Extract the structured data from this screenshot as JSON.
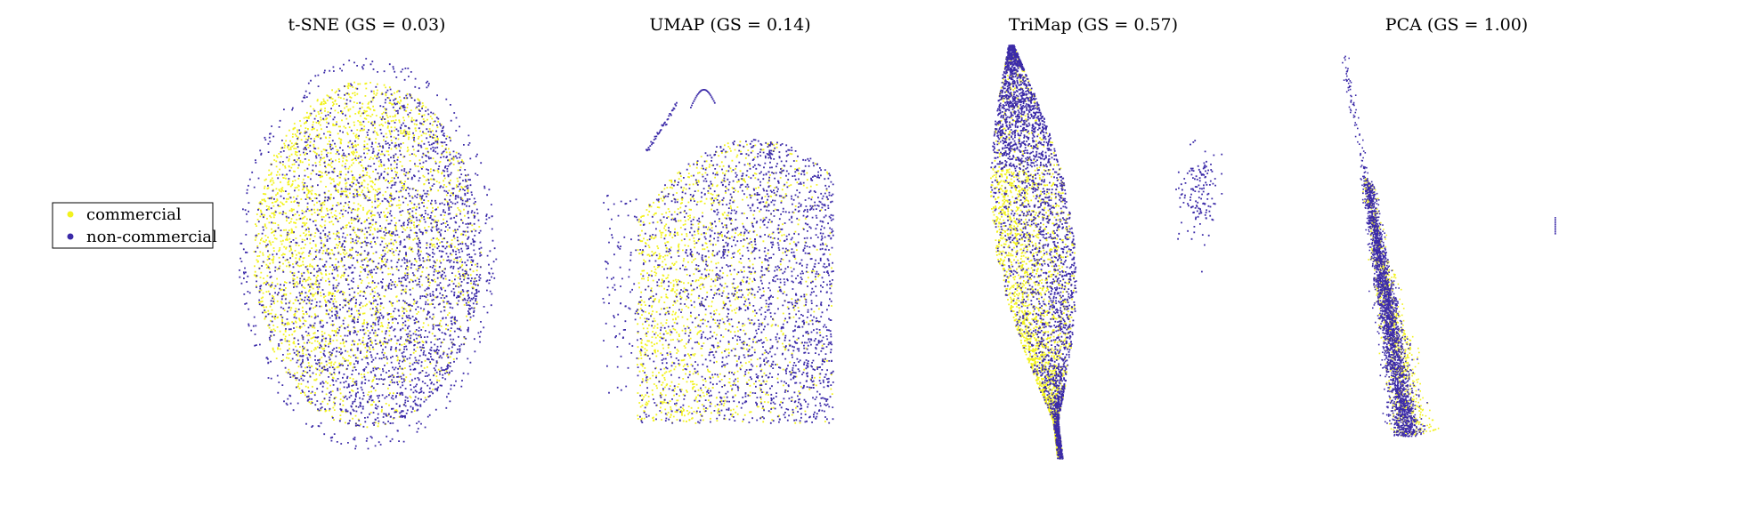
{
  "colors": {
    "commercial": "#f2f21e",
    "non_commercial": "#3b2aa8",
    "background": "#ffffff",
    "legend_border": "#000000"
  },
  "legend": {
    "placement": "left",
    "entries": [
      {
        "label": "commercial",
        "color": "#f2f21e"
      },
      {
        "label": "non-commercial",
        "color": "#3b2aa8"
      }
    ]
  },
  "chart_data": [
    {
      "type": "scatter",
      "title": "t-SNE (GS = 0.03)",
      "method": "t-SNE",
      "gs": 0.03,
      "grid": false,
      "axes_visible": false,
      "series": [
        {
          "name": "commercial",
          "color": "#f2f21e"
        },
        {
          "name": "non-commercial",
          "color": "#3b2aa8"
        }
      ]
    },
    {
      "type": "scatter",
      "title": "UMAP (GS = 0.14)",
      "method": "UMAP",
      "gs": 0.14,
      "grid": false,
      "axes_visible": false,
      "series": [
        {
          "name": "commercial",
          "color": "#f2f21e"
        },
        {
          "name": "non-commercial",
          "color": "#3b2aa8"
        }
      ]
    },
    {
      "type": "scatter",
      "title": "TriMap (GS = 0.57)",
      "method": "TriMap",
      "gs": 0.57,
      "grid": false,
      "axes_visible": false,
      "series": [
        {
          "name": "commercial",
          "color": "#f2f21e"
        },
        {
          "name": "non-commercial",
          "color": "#3b2aa8"
        }
      ]
    },
    {
      "type": "scatter",
      "title": "PCA (GS = 1.00)",
      "method": "PCA",
      "gs": 1.0,
      "grid": false,
      "axes_visible": false,
      "series": [
        {
          "name": "commercial",
          "color": "#f2f21e"
        },
        {
          "name": "non-commercial",
          "color": "#3b2aa8"
        }
      ]
    }
  ]
}
